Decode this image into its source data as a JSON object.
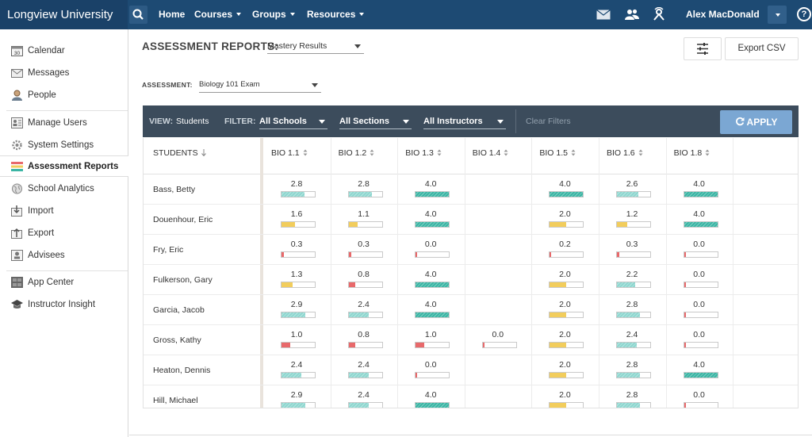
{
  "app": {
    "brand": "Longview University"
  },
  "topnav": {
    "home": "Home",
    "courses": "Courses",
    "groups": "Groups",
    "resources": "Resources",
    "user_name": "Alex MacDonald",
    "help_label": "?"
  },
  "sidebar": {
    "items": [
      {
        "label": "Calendar",
        "icon": "calendar-icon"
      },
      {
        "label": "Messages",
        "icon": "envelope-icon"
      },
      {
        "label": "People",
        "icon": "person-icon"
      },
      {
        "label": "Manage Users",
        "icon": "manage-users-icon"
      },
      {
        "label": "System Settings",
        "icon": "gear-icon"
      },
      {
        "label": "Assessment Reports",
        "icon": "report-icon",
        "active": true
      },
      {
        "label": "School Analytics",
        "icon": "globe-icon"
      },
      {
        "label": "Import",
        "icon": "import-icon"
      },
      {
        "label": "Export",
        "icon": "export-icon"
      },
      {
        "label": "Advisees",
        "icon": "advisees-icon"
      },
      {
        "label": "App Center",
        "icon": "app-center-icon"
      },
      {
        "label": "Instructor Insight",
        "icon": "graduation-cap-icon"
      }
    ]
  },
  "header": {
    "title": "ASSESSMENT REPORTS:",
    "report_type": "Mastery Results",
    "export_label": "Export CSV",
    "assessment_label": "ASSESSMENT:",
    "assessment_value": "Biology 101 Exam"
  },
  "filterbar": {
    "view_label": "VIEW:",
    "view_value": "Students",
    "filter_label": "FILTER:",
    "schools": "All Schools",
    "sections": "All Sections",
    "instructors": "All Instructors",
    "clear": "Clear Filters",
    "apply": "APPLY"
  },
  "table": {
    "students_header": "STUDENTS",
    "columns": [
      "BIO 1.1",
      "BIO 1.2",
      "BIO 1.3",
      "BIO 1.4",
      "BIO 1.5",
      "BIO 1.6",
      "BIO 1.8"
    ],
    "rows": [
      {
        "name": "Bass, Betty",
        "scores": [
          "2.8",
          "2.8",
          "4.0",
          null,
          "4.0",
          "2.6",
          "4.0"
        ]
      },
      {
        "name": "Douenhour, Eric",
        "scores": [
          "1.6",
          "1.1",
          "4.0",
          null,
          "2.0",
          "1.2",
          "4.0"
        ]
      },
      {
        "name": "Fry, Eric",
        "scores": [
          "0.3",
          "0.3",
          "0.0",
          null,
          "0.2",
          "0.3",
          "0.0"
        ]
      },
      {
        "name": "Fulkerson, Gary",
        "scores": [
          "1.3",
          "0.8",
          "4.0",
          null,
          "2.0",
          "2.2",
          "0.0"
        ]
      },
      {
        "name": "Garcia, Jacob",
        "scores": [
          "2.9",
          "2.4",
          "4.0",
          null,
          "2.0",
          "2.8",
          "0.0"
        ]
      },
      {
        "name": "Gross, Kathy",
        "scores": [
          "1.0",
          "0.8",
          "1.0",
          "0.0",
          "2.0",
          "2.4",
          "0.0"
        ]
      },
      {
        "name": "Heaton, Dennis",
        "scores": [
          "2.4",
          "2.4",
          "0.0",
          null,
          "2.0",
          "2.8",
          "4.0"
        ]
      },
      {
        "name": "Hill, Michael",
        "scores": [
          "2.9",
          "2.4",
          "4.0",
          null,
          "2.0",
          "2.8",
          "0.0"
        ]
      }
    ]
  },
  "colors": {
    "low": "#e8696b",
    "mid": "#f2cd5c",
    "high": "#8fd6cf",
    "mastery": "#3bb5a4",
    "topbar": "#1d4a73",
    "apply": "#7ba7d3"
  }
}
